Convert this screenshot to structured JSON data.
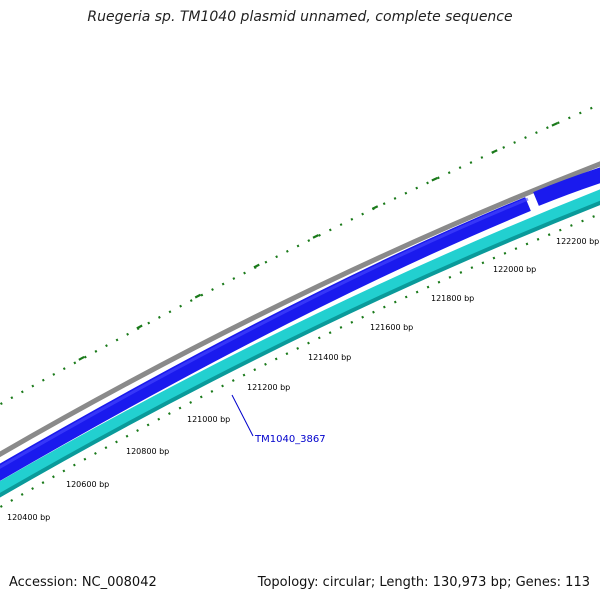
{
  "title": "Ruegeria sp. TM1040 plasmid unnamed, complete sequence",
  "accession_text": "Accession: NC_008042",
  "summary_text": "Topology: circular; Length: 130,973 bp; Genes: 113",
  "gene_label": "TM1040_3867",
  "ticks": [
    {
      "label": "120400 bp"
    },
    {
      "label": "120600 bp"
    },
    {
      "label": "120800 bp"
    },
    {
      "label": "121000 bp"
    },
    {
      "label": "121200 bp"
    },
    {
      "label": "121400 bp"
    },
    {
      "label": "121600 bp"
    },
    {
      "label": "121800 bp"
    },
    {
      "label": "122000 bp"
    },
    {
      "label": "122200 bp"
    }
  ],
  "colors": {
    "backbone": "#808080",
    "forward_gene": "#1a1aee",
    "reverse_gene": "#22d0d0",
    "gc_skew": "#1a7a1a",
    "gene_label": "#0000cc"
  }
}
